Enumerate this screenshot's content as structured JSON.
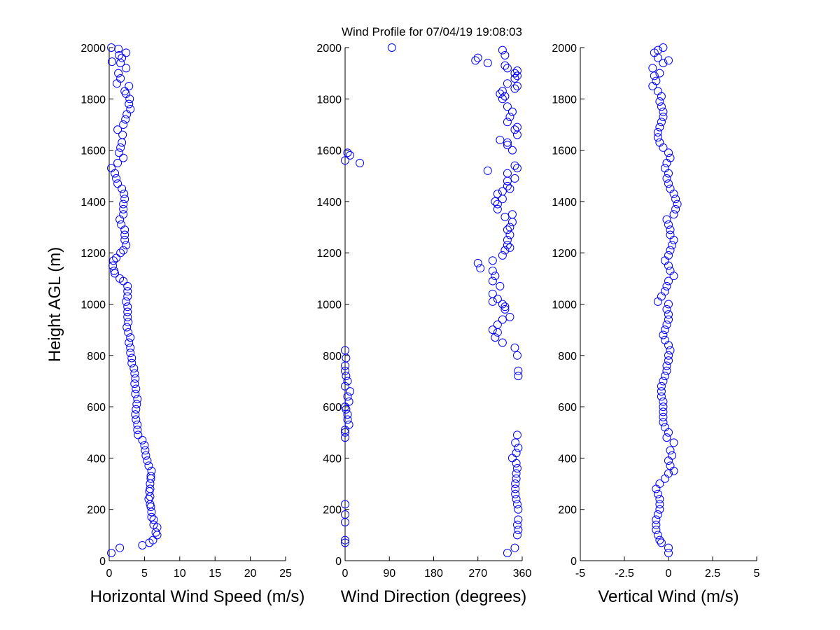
{
  "title": "Wind Profile for  07/04/19 19:08:03",
  "ylabel": "Height AGL (m)",
  "marker_color": "#0000ff",
  "chart_data": [
    {
      "type": "scatter",
      "name": "speed",
      "xlabel": "Horizontal Wind Speed (m/s)",
      "ylabel": "Height AGL (m)",
      "xlim": [
        0,
        25
      ],
      "ylim": [
        0,
        2000
      ],
      "xticks": [
        "0",
        "5",
        "10",
        "15",
        "20",
        "25"
      ],
      "yticks": [
        "0",
        "200",
        "400",
        "600",
        "800",
        "1000",
        "1200",
        "1400",
        "1600",
        "1800",
        "2000"
      ],
      "marker": "circle-open",
      "points": [
        [
          0.3,
          30
        ],
        [
          1.5,
          50
        ],
        [
          4.7,
          60
        ],
        [
          5.7,
          70
        ],
        [
          6.2,
          80
        ],
        [
          6.8,
          100
        ],
        [
          6.6,
          110
        ],
        [
          6.8,
          130
        ],
        [
          6.3,
          140
        ],
        [
          6.3,
          160
        ],
        [
          6.0,
          170
        ],
        [
          6.0,
          190
        ],
        [
          5.9,
          210
        ],
        [
          5.8,
          220
        ],
        [
          5.6,
          240
        ],
        [
          5.8,
          250
        ],
        [
          5.7,
          270
        ],
        [
          5.8,
          280
        ],
        [
          5.8,
          300
        ],
        [
          5.9,
          320
        ],
        [
          5.9,
          330
        ],
        [
          6.0,
          350
        ],
        [
          5.6,
          370
        ],
        [
          5.4,
          390
        ],
        [
          5.2,
          410
        ],
        [
          5.1,
          430
        ],
        [
          5.0,
          450
        ],
        [
          4.7,
          470
        ],
        [
          4.1,
          490
        ],
        [
          4.0,
          510
        ],
        [
          4.0,
          530
        ],
        [
          3.8,
          550
        ],
        [
          3.7,
          570
        ],
        [
          3.8,
          590
        ],
        [
          3.9,
          610
        ],
        [
          4.0,
          630
        ],
        [
          3.7,
          650
        ],
        [
          3.8,
          670
        ],
        [
          3.6,
          690
        ],
        [
          3.7,
          710
        ],
        [
          3.6,
          730
        ],
        [
          3.5,
          750
        ],
        [
          3.2,
          770
        ],
        [
          3.2,
          790
        ],
        [
          3.0,
          810
        ],
        [
          3.0,
          830
        ],
        [
          2.8,
          850
        ],
        [
          3.0,
          870
        ],
        [
          2.7,
          890
        ],
        [
          2.5,
          910
        ],
        [
          2.7,
          930
        ],
        [
          2.6,
          950
        ],
        [
          2.6,
          970
        ],
        [
          2.6,
          990
        ],
        [
          2.4,
          1010
        ],
        [
          2.6,
          1030
        ],
        [
          2.6,
          1050
        ],
        [
          2.6,
          1070
        ],
        [
          2.0,
          1090
        ],
        [
          1.5,
          1100
        ],
        [
          0.8,
          1120
        ],
        [
          0.7,
          1130
        ],
        [
          0.5,
          1150
        ],
        [
          0.6,
          1170
        ],
        [
          1.0,
          1180
        ],
        [
          1.6,
          1200
        ],
        [
          2.0,
          1210
        ],
        [
          2.4,
          1230
        ],
        [
          2.2,
          1250
        ],
        [
          2.2,
          1270
        ],
        [
          2.2,
          1290
        ],
        [
          1.7,
          1310
        ],
        [
          1.5,
          1330
        ],
        [
          2.0,
          1350
        ],
        [
          2.0,
          1370
        ],
        [
          2.0,
          1390
        ],
        [
          2.2,
          1410
        ],
        [
          2.1,
          1430
        ],
        [
          1.8,
          1450
        ],
        [
          1.2,
          1470
        ],
        [
          1.0,
          1490
        ],
        [
          0.8,
          1510
        ],
        [
          0.3,
          1530
        ],
        [
          1.2,
          1550
        ],
        [
          2.0,
          1570
        ],
        [
          1.4,
          1590
        ],
        [
          1.6,
          1610
        ],
        [
          1.8,
          1630
        ],
        [
          1.9,
          1660
        ],
        [
          1.2,
          1680
        ],
        [
          2.0,
          1700
        ],
        [
          2.3,
          1720
        ],
        [
          2.5,
          1740
        ],
        [
          3.0,
          1760
        ],
        [
          2.8,
          1780
        ],
        [
          2.9,
          1800
        ],
        [
          2.4,
          1820
        ],
        [
          2.2,
          1830
        ],
        [
          2.8,
          1850
        ],
        [
          1.1,
          1860
        ],
        [
          1.6,
          1880
        ],
        [
          1.3,
          1900
        ],
        [
          2.4,
          1920
        ],
        [
          1.6,
          1940
        ],
        [
          0.4,
          1945
        ],
        [
          1.8,
          1960
        ],
        [
          1.4,
          1970
        ],
        [
          2.4,
          1980
        ],
        [
          1.3,
          1995
        ],
        [
          0.3,
          2000
        ]
      ]
    },
    {
      "type": "scatter",
      "name": "direction",
      "xlabel": "Wind Direction (degrees)",
      "ylabel": "",
      "xlim": [
        0,
        360
      ],
      "ylim": [
        0,
        2000
      ],
      "xticks": [
        "0",
        "90",
        "180",
        "270",
        "360"
      ],
      "yticks": [
        "0",
        "200",
        "400",
        "600",
        "800",
        "1000",
        "1200",
        "1400",
        "1600",
        "1800",
        "2000"
      ],
      "marker": "circle-open",
      "points": [
        [
          330,
          30
        ],
        [
          345,
          50
        ],
        [
          0,
          70
        ],
        [
          0,
          80
        ],
        [
          350,
          100
        ],
        [
          352,
          120
        ],
        [
          350,
          140
        ],
        [
          352,
          160
        ],
        [
          0,
          150
        ],
        [
          0,
          180
        ],
        [
          352,
          200
        ],
        [
          350,
          220
        ],
        [
          0,
          220
        ],
        [
          348,
          240
        ],
        [
          346,
          260
        ],
        [
          346,
          280
        ],
        [
          346,
          300
        ],
        [
          348,
          320
        ],
        [
          348,
          340
        ],
        [
          350,
          360
        ],
        [
          348,
          380
        ],
        [
          340,
          400
        ],
        [
          348,
          420
        ],
        [
          352,
          440
        ],
        [
          346,
          460
        ],
        [
          350,
          490
        ],
        [
          0,
          480
        ],
        [
          0,
          500
        ],
        [
          0,
          510
        ],
        [
          8,
          530
        ],
        [
          5,
          550
        ],
        [
          5,
          570
        ],
        [
          2,
          590
        ],
        [
          0,
          600
        ],
        [
          8,
          620
        ],
        [
          5,
          640
        ],
        [
          10,
          660
        ],
        [
          0,
          680
        ],
        [
          5,
          700
        ],
        [
          2,
          720
        ],
        [
          0,
          740
        ],
        [
          0,
          760
        ],
        [
          2,
          790
        ],
        [
          0,
          820
        ],
        [
          352,
          720
        ],
        [
          352,
          740
        ],
        [
          350,
          800
        ],
        [
          345,
          830
        ],
        [
          320,
          850
        ],
        [
          305,
          870
        ],
        [
          310,
          890
        ],
        [
          300,
          900
        ],
        [
          310,
          920
        ],
        [
          320,
          940
        ],
        [
          335,
          950
        ],
        [
          325,
          980
        ],
        [
          320,
          1000
        ],
        [
          325,
          990
        ],
        [
          300,
          1010
        ],
        [
          310,
          1020
        ],
        [
          300,
          1040
        ],
        [
          315,
          1070
        ],
        [
          300,
          1090
        ],
        [
          305,
          1110
        ],
        [
          300,
          1130
        ],
        [
          275,
          1140
        ],
        [
          270,
          1160
        ],
        [
          300,
          1170
        ],
        [
          320,
          1190
        ],
        [
          325,
          1210
        ],
        [
          335,
          1220
        ],
        [
          330,
          1230
        ],
        [
          330,
          1250
        ],
        [
          335,
          1270
        ],
        [
          330,
          1290
        ],
        [
          335,
          1300
        ],
        [
          340,
          1320
        ],
        [
          325,
          1340
        ],
        [
          340,
          1350
        ],
        [
          310,
          1370
        ],
        [
          310,
          1390
        ],
        [
          305,
          1400
        ],
        [
          320,
          1410
        ],
        [
          310,
          1430
        ],
        [
          320,
          1440
        ],
        [
          335,
          1450
        ],
        [
          330,
          1460
        ],
        [
          330,
          1480
        ],
        [
          345,
          1490
        ],
        [
          330,
          1510
        ],
        [
          290,
          1520
        ],
        [
          350,
          1530
        ],
        [
          345,
          1540
        ],
        [
          30,
          1550
        ],
        [
          0,
          1560
        ],
        [
          10,
          1580
        ],
        [
          5,
          1590
        ],
        [
          340,
          1600
        ],
        [
          330,
          1620
        ],
        [
          330,
          1630
        ],
        [
          315,
          1640
        ],
        [
          350,
          1660
        ],
        [
          345,
          1680
        ],
        [
          350,
          1690
        ],
        [
          330,
          1710
        ],
        [
          335,
          1730
        ],
        [
          340,
          1750
        ],
        [
          330,
          1770
        ],
        [
          320,
          1800
        ],
        [
          325,
          1810
        ],
        [
          315,
          1820
        ],
        [
          320,
          1830
        ],
        [
          345,
          1840
        ],
        [
          350,
          1850
        ],
        [
          330,
          1860
        ],
        [
          345,
          1880
        ],
        [
          350,
          1890
        ],
        [
          345,
          1900
        ],
        [
          350,
          1910
        ],
        [
          330,
          1920
        ],
        [
          325,
          1930
        ],
        [
          290,
          1940
        ],
        [
          265,
          1950
        ],
        [
          270,
          1960
        ],
        [
          325,
          1970
        ],
        [
          320,
          1990
        ],
        [
          95,
          2000
        ]
      ]
    },
    {
      "type": "scatter",
      "name": "vertical",
      "xlabel": "Vertical Wind (m/s)",
      "ylabel": "",
      "xlim": [
        -5,
        5
      ],
      "ylim": [
        0,
        2000
      ],
      "xticks": [
        "-5",
        "-2.5",
        "0",
        "2.5",
        "5"
      ],
      "yticks": [
        "0",
        "200",
        "400",
        "600",
        "800",
        "1000",
        "1200",
        "1400",
        "1600",
        "1800",
        "2000"
      ],
      "marker": "circle-open",
      "points": [
        [
          0.0,
          30
        ],
        [
          0.0,
          50
        ],
        [
          -0.4,
          70
        ],
        [
          -0.5,
          80
        ],
        [
          -0.6,
          100
        ],
        [
          -0.7,
          120
        ],
        [
          -0.7,
          140
        ],
        [
          -0.7,
          160
        ],
        [
          -0.6,
          180
        ],
        [
          -0.5,
          200
        ],
        [
          -0.5,
          220
        ],
        [
          -0.5,
          240
        ],
        [
          -0.6,
          260
        ],
        [
          -0.7,
          280
        ],
        [
          -0.5,
          300
        ],
        [
          -0.2,
          320
        ],
        [
          0.0,
          340
        ],
        [
          0.3,
          350
        ],
        [
          0.1,
          370
        ],
        [
          0.0,
          390
        ],
        [
          0.2,
          410
        ],
        [
          0.1,
          430
        ],
        [
          0.3,
          460
        ],
        [
          -0.1,
          480
        ],
        [
          0.0,
          500
        ],
        [
          -0.2,
          520
        ],
        [
          -0.3,
          540
        ],
        [
          -0.3,
          560
        ],
        [
          -0.3,
          580
        ],
        [
          -0.3,
          600
        ],
        [
          -0.3,
          620
        ],
        [
          -0.4,
          640
        ],
        [
          -0.4,
          660
        ],
        [
          -0.4,
          680
        ],
        [
          -0.3,
          700
        ],
        [
          -0.2,
          720
        ],
        [
          -0.1,
          740
        ],
        [
          -0.1,
          760
        ],
        [
          0.0,
          780
        ],
        [
          0.0,
          800
        ],
        [
          0.1,
          820
        ],
        [
          0.0,
          840
        ],
        [
          -0.2,
          860
        ],
        [
          -0.3,
          880
        ],
        [
          -0.2,
          900
        ],
        [
          -0.1,
          920
        ],
        [
          0.0,
          940
        ],
        [
          0.0,
          960
        ],
        [
          -0.1,
          980
        ],
        [
          0.0,
          1000
        ],
        [
          -0.6,
          1010
        ],
        [
          -0.4,
          1030
        ],
        [
          -0.2,
          1050
        ],
        [
          -0.1,
          1070
        ],
        [
          0.0,
          1090
        ],
        [
          0.3,
          1110
        ],
        [
          0.1,
          1130
        ],
        [
          0.0,
          1150
        ],
        [
          -0.2,
          1170
        ],
        [
          0.0,
          1190
        ],
        [
          0.1,
          1210
        ],
        [
          0.2,
          1230
        ],
        [
          0.3,
          1250
        ],
        [
          0.1,
          1270
        ],
        [
          0.1,
          1290
        ],
        [
          0.0,
          1310
        ],
        [
          -0.1,
          1330
        ],
        [
          0.3,
          1350
        ],
        [
          0.4,
          1370
        ],
        [
          0.5,
          1390
        ],
        [
          0.4,
          1410
        ],
        [
          0.3,
          1430
        ],
        [
          0.1,
          1450
        ],
        [
          0.0,
          1470
        ],
        [
          -0.1,
          1490
        ],
        [
          0.0,
          1510
        ],
        [
          -0.2,
          1530
        ],
        [
          -0.1,
          1550
        ],
        [
          0.1,
          1570
        ],
        [
          0.0,
          1590
        ],
        [
          -0.3,
          1610
        ],
        [
          -0.5,
          1630
        ],
        [
          -0.6,
          1650
        ],
        [
          -0.6,
          1670
        ],
        [
          -0.5,
          1690
        ],
        [
          -0.4,
          1710
        ],
        [
          -0.3,
          1730
        ],
        [
          -0.3,
          1750
        ],
        [
          -0.4,
          1770
        ],
        [
          -0.5,
          1790
        ],
        [
          -0.4,
          1810
        ],
        [
          -0.6,
          1830
        ],
        [
          -0.9,
          1850
        ],
        [
          -0.7,
          1870
        ],
        [
          -0.8,
          1890
        ],
        [
          -0.5,
          1900
        ],
        [
          -0.9,
          1920
        ],
        [
          -0.3,
          1940
        ],
        [
          0.0,
          1950
        ],
        [
          -0.6,
          1960
        ],
        [
          -0.8,
          1980
        ],
        [
          -0.6,
          1990
        ],
        [
          -0.3,
          2000
        ]
      ]
    }
  ]
}
